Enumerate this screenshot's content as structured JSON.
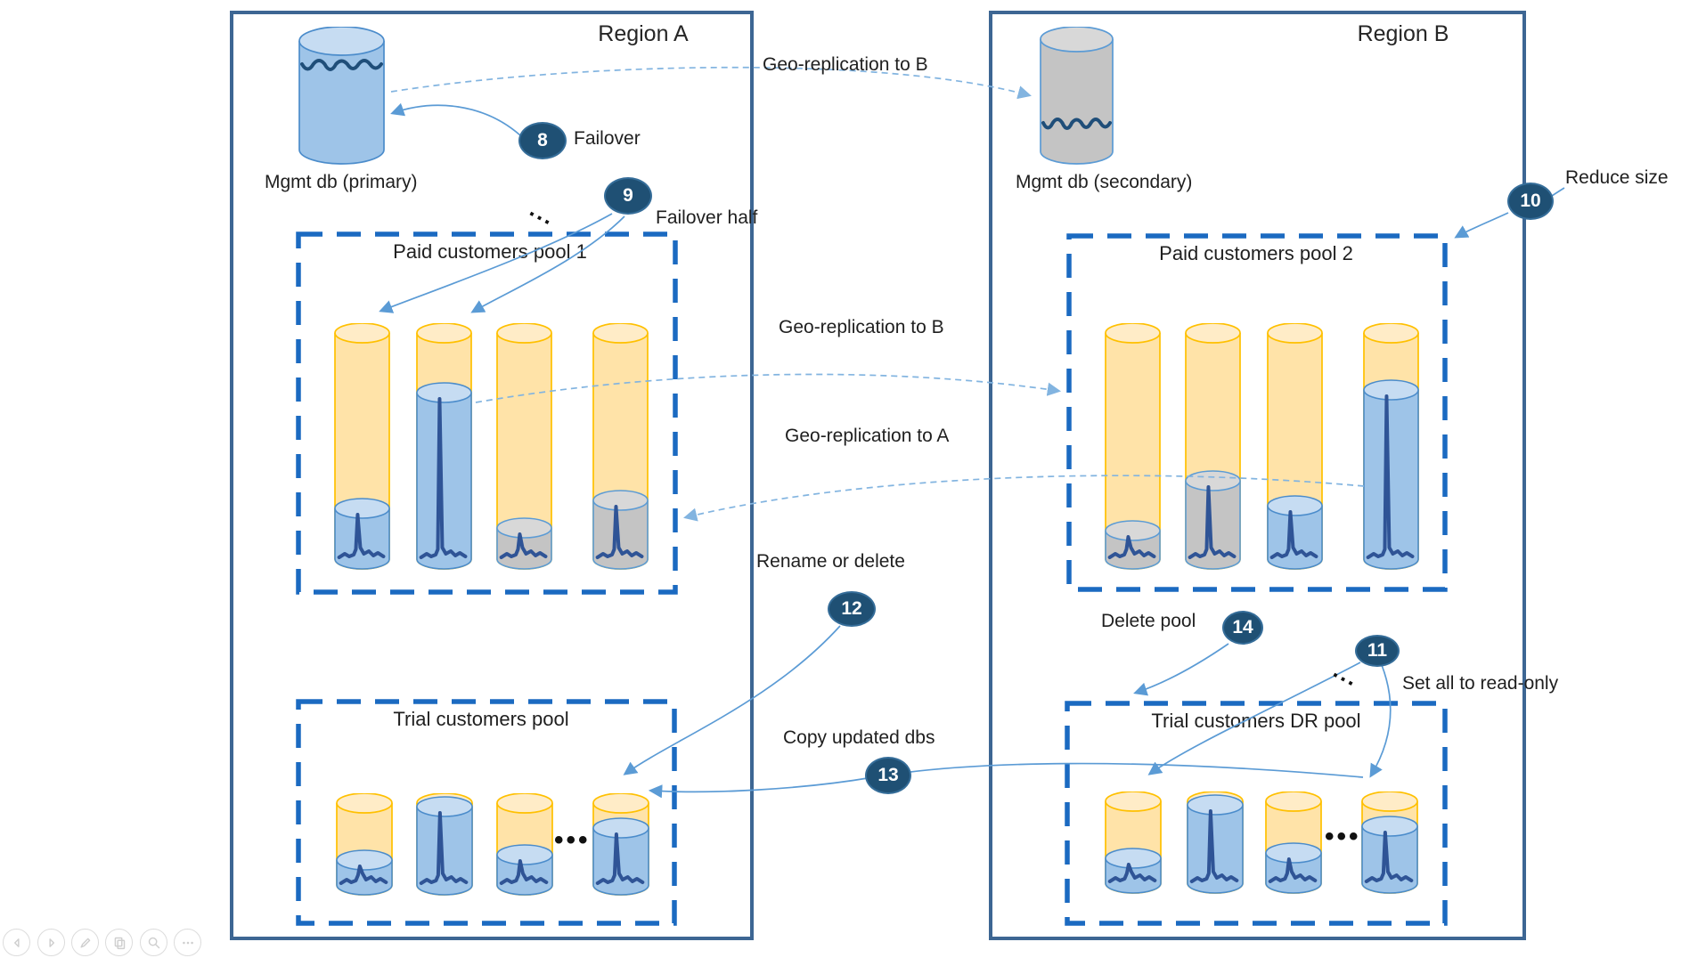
{
  "regions": [
    {
      "title": "Region A",
      "mgmt_db": {
        "label": "Mgmt db (primary)",
        "variant": "blue"
      },
      "pools": [
        {
          "title": "Paid customers pool 1",
          "cylinders": [
            {
              "fill": "blue",
              "level": 0.25
            },
            {
              "fill": "blue",
              "level": 0.72
            },
            {
              "fill": "gray",
              "level": 0.17
            },
            {
              "fill": "gray",
              "level": 0.28
            }
          ],
          "ellipsis": false
        },
        {
          "title": "Trial customers pool",
          "cylinders": [
            {
              "fill": "blue",
              "level": 0.35
            },
            {
              "fill": "blue",
              "level": 0.87
            },
            {
              "fill": "blue",
              "level": 0.4
            },
            {
              "fill": "blue",
              "level": 0.66
            }
          ],
          "ellipsis": true
        }
      ]
    },
    {
      "title": "Region B",
      "mgmt_db": {
        "label": "Mgmt db (secondary)",
        "variant": "gray"
      },
      "pools": [
        {
          "title": "Paid customers pool 2",
          "cylinders": [
            {
              "fill": "gray",
              "level": 0.16
            },
            {
              "fill": "gray",
              "level": 0.36
            },
            {
              "fill": "blue",
              "level": 0.26
            },
            {
              "fill": "blue",
              "level": 0.73
            }
          ],
          "ellipsis": false
        },
        {
          "title": "Trial customers DR pool",
          "cylinders": [
            {
              "fill": "blue",
              "level": 0.35
            },
            {
              "fill": "blue",
              "level": 0.87
            },
            {
              "fill": "blue",
              "level": 0.4
            },
            {
              "fill": "blue",
              "level": 0.66
            }
          ],
          "ellipsis": true
        }
      ]
    }
  ],
  "steps": [
    {
      "num": "8",
      "label": "Failover"
    },
    {
      "num": "9",
      "label": "Failover half"
    },
    {
      "num": "10",
      "label": "Reduce size"
    },
    {
      "num": "11",
      "label": "Set all to read-only"
    },
    {
      "num": "12",
      "label": "Rename or delete"
    },
    {
      "num": "13",
      "label": "Copy updated dbs"
    },
    {
      "num": "14",
      "label": "Delete pool"
    }
  ],
  "annotations": {
    "geo_top": "Geo-replication to B",
    "geo_mid": "Geo-replication to B",
    "geo_bottom": "Geo-replication to A",
    "trial_ellipsis": "•••",
    "diag_dots": "···"
  },
  "colors": {
    "region_border": "#3d6693",
    "pool_dash": "#1b6ac1",
    "orange_body": "#ffe3a8",
    "orange_top": "#ffecc7",
    "orange_stroke": "#ffc000",
    "blue_body": "#9ec4e8",
    "blue_top": "#c6dcf2",
    "blue_stroke": "#4b8ccb",
    "gray_body": "#c4c4c4",
    "gray_top": "#d8d8d8",
    "gray_stroke": "#5b9bd5",
    "spike": "#2f5496",
    "arrow_solid": "#5b9bd5",
    "arrow_dashed": "#82b4e0",
    "badge_bg": "#1f5074"
  },
  "player_controls": [
    {
      "icon": "arrow-left-icon"
    },
    {
      "icon": "arrow-right-icon"
    },
    {
      "icon": "pen-icon"
    },
    {
      "icon": "copy-icon"
    },
    {
      "icon": "magnifier-icon"
    },
    {
      "icon": "ellipsis-icon"
    }
  ]
}
